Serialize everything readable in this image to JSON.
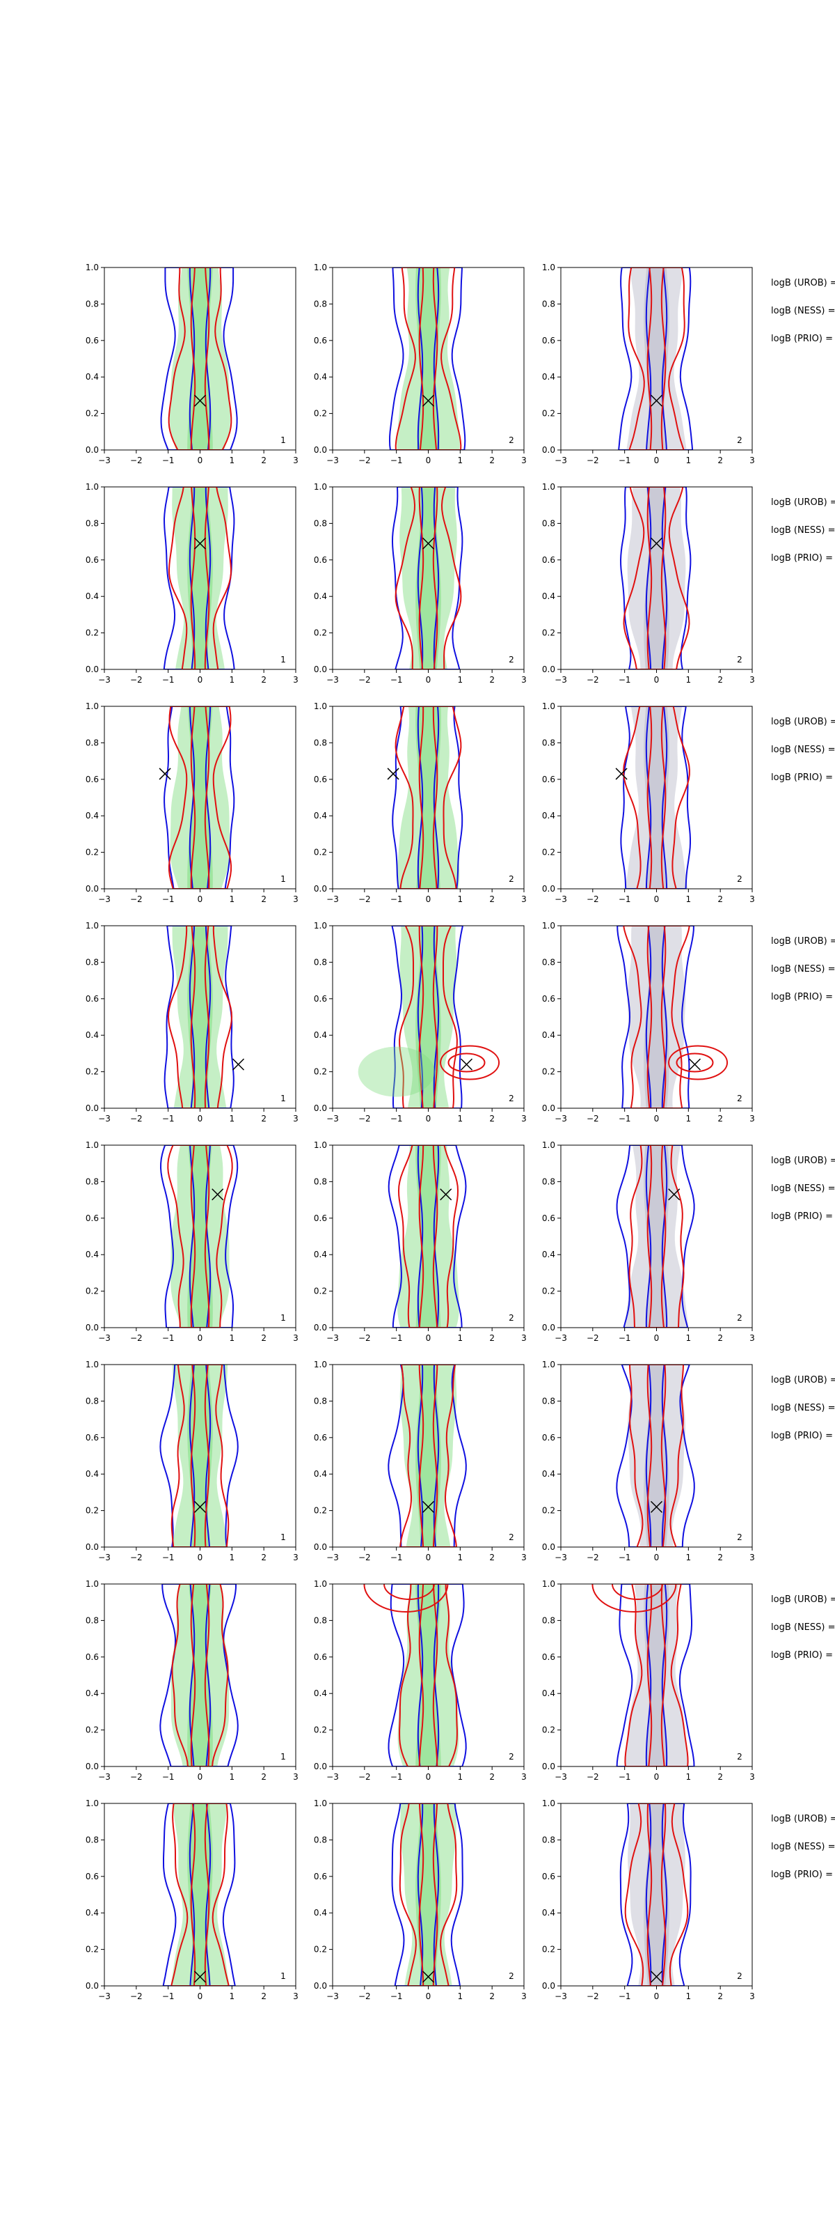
{
  "figure": {
    "x_ticks": [
      "−3",
      "−2",
      "−1",
      "0",
      "1",
      "2",
      "3"
    ],
    "y_ticks": [
      "0.0",
      "0.2",
      "0.4",
      "0.6",
      "0.8",
      "1.0"
    ],
    "colors": {
      "blue_contour": "#1010e0",
      "red_contour": "#e01010",
      "green_fill": "#7fdc7f",
      "gray_fill": "#b8b8c8",
      "marker": "#000000"
    }
  },
  "chart_data": {
    "type": "contour_grid",
    "rows": 8,
    "columns": 3,
    "xlim": [
      -3,
      3
    ],
    "ylim": [
      0,
      1
    ],
    "panel_labels": [
      "1",
      "2",
      "2"
    ],
    "row_annotations": [
      "logB (UROB) =",
      "logB (NESS) =",
      "logB (PRIO) ="
    ],
    "truth_markers": [
      {
        "x": 0.0,
        "y": 0.27
      },
      {
        "x": 0.0,
        "y": 0.69
      },
      {
        "x": -1.1,
        "y": 0.63
      },
      {
        "x": 1.2,
        "y": 0.24
      },
      {
        "x": 0.55,
        "y": 0.73
      },
      {
        "x": 0.0,
        "y": 0.22
      },
      {
        "x": null,
        "y": null
      },
      {
        "x": 0.0,
        "y": 0.05
      }
    ]
  }
}
